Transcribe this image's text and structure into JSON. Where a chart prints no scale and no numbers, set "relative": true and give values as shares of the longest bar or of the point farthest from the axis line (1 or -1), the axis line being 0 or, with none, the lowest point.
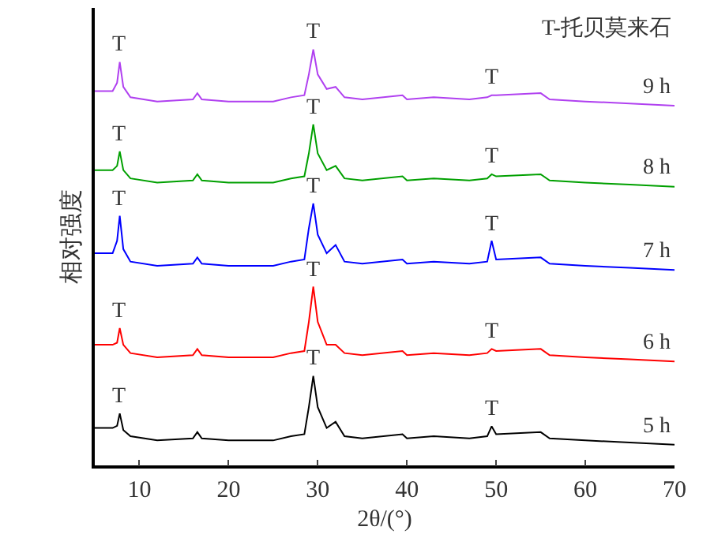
{
  "chart_data": {
    "type": "line",
    "relative": true,
    "xlabel": "2θ/(°)",
    "ylabel": "相对强度",
    "xlim": [
      5,
      70
    ],
    "xticks": [
      10,
      20,
      30,
      40,
      50,
      60,
      70
    ],
    "tick_labels": "x",
    "legend": false,
    "marker": "none",
    "line_style": "solid",
    "x": [
      5,
      6,
      7,
      7.5,
      7.8,
      8.2,
      9,
      12,
      16,
      16.5,
      17,
      20,
      25,
      27,
      28.5,
      29,
      29.5,
      30,
      31,
      32,
      33,
      35,
      39.5,
      40,
      43,
      47,
      49,
      49.5,
      50,
      55,
      56,
      60,
      65,
      70
    ],
    "series": [
      {
        "name": "5 h",
        "color": "#000000",
        "values": [
          0.09,
          0.09,
          0.09,
          0.095,
          0.125,
          0.085,
          0.07,
          0.06,
          0.065,
          0.08,
          0.065,
          0.06,
          0.06,
          0.07,
          0.075,
          0.14,
          0.215,
          0.14,
          0.09,
          0.105,
          0.07,
          0.065,
          0.075,
          0.065,
          0.07,
          0.065,
          0.07,
          0.094,
          0.075,
          0.08,
          0.065,
          0.06,
          0.055,
          0.05
        ]
      },
      {
        "name": "6 h",
        "color": "#ff0000",
        "values": [
          0.29,
          0.29,
          0.29,
          0.295,
          0.33,
          0.29,
          0.27,
          0.26,
          0.265,
          0.28,
          0.265,
          0.26,
          0.26,
          0.27,
          0.275,
          0.345,
          0.43,
          0.345,
          0.29,
          0.29,
          0.27,
          0.265,
          0.275,
          0.265,
          0.27,
          0.265,
          0.27,
          0.28,
          0.275,
          0.28,
          0.265,
          0.26,
          0.255,
          0.25
        ]
      },
      {
        "name": "7 h",
        "color": "#0000ff",
        "values": [
          0.51,
          0.51,
          0.51,
          0.54,
          0.6,
          0.52,
          0.49,
          0.48,
          0.485,
          0.5,
          0.485,
          0.48,
          0.48,
          0.49,
          0.495,
          0.57,
          0.63,
          0.555,
          0.51,
          0.53,
          0.49,
          0.485,
          0.495,
          0.485,
          0.49,
          0.485,
          0.49,
          0.54,
          0.495,
          0.5,
          0.485,
          0.48,
          0.475,
          0.47
        ]
      },
      {
        "name": "8 h",
        "color": "#00a000",
        "values": [
          0.71,
          0.71,
          0.71,
          0.72,
          0.755,
          0.71,
          0.69,
          0.68,
          0.685,
          0.7,
          0.685,
          0.68,
          0.68,
          0.69,
          0.695,
          0.75,
          0.82,
          0.75,
          0.71,
          0.72,
          0.69,
          0.685,
          0.695,
          0.685,
          0.69,
          0.685,
          0.69,
          0.7,
          0.695,
          0.7,
          0.685,
          0.68,
          0.675,
          0.67
        ]
      },
      {
        "name": "9 h",
        "color": "#b040f0",
        "values": [
          0.9,
          0.9,
          0.9,
          0.92,
          0.97,
          0.91,
          0.885,
          0.875,
          0.88,
          0.895,
          0.88,
          0.875,
          0.875,
          0.885,
          0.89,
          0.94,
          1.0,
          0.94,
          0.905,
          0.91,
          0.885,
          0.88,
          0.89,
          0.88,
          0.885,
          0.88,
          0.885,
          0.89,
          0.89,
          0.895,
          0.88,
          0.875,
          0.87,
          0.865
        ]
      }
    ],
    "annotations": [
      "T-托贝莫来石",
      {
        "text": "T",
        "x": 7.8,
        "y": 0.125
      },
      {
        "text": "T",
        "x": 29.5,
        "y": 0.215
      },
      {
        "text": "T",
        "x": 49.5,
        "y": 0.094
      },
      {
        "text": "T",
        "x": 7.8,
        "y": 0.33
      },
      {
        "text": "T",
        "x": 29.5,
        "y": 0.43
      },
      {
        "text": "T",
        "x": 49.5,
        "y": 0.28
      },
      {
        "text": "T",
        "x": 7.8,
        "y": 0.6
      },
      {
        "text": "T",
        "x": 29.5,
        "y": 0.63
      },
      {
        "text": "T",
        "x": 49.5,
        "y": 0.54
      },
      {
        "text": "T",
        "x": 7.8,
        "y": 0.755
      },
      {
        "text": "T",
        "x": 29.5,
        "y": 0.82
      },
      {
        "text": "T",
        "x": 49.5,
        "y": 0.7
      },
      {
        "text": "T",
        "x": 7.8,
        "y": 0.97
      },
      {
        "text": "T",
        "x": 29.5,
        "y": 1.0
      },
      {
        "text": "T",
        "x": 49.5,
        "y": 0.89
      }
    ]
  }
}
